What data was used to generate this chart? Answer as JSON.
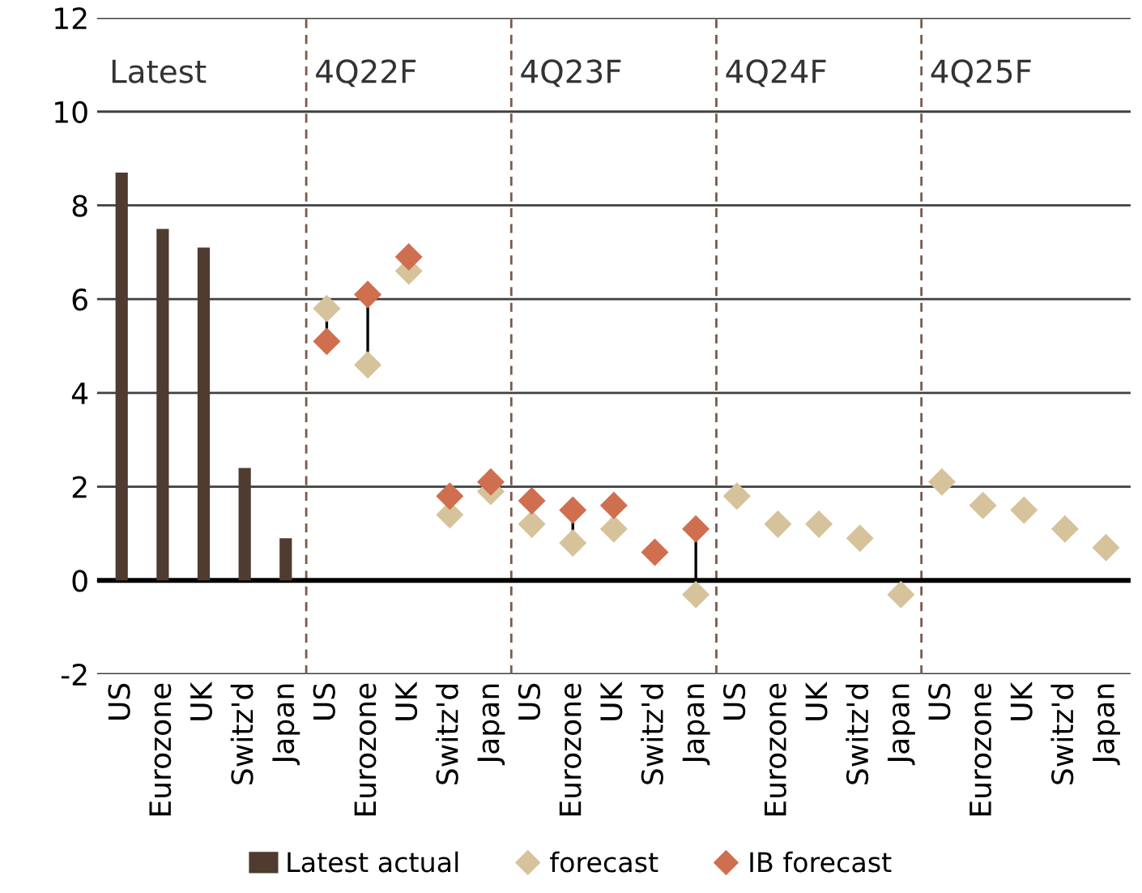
{
  "chart_data": {
    "type": "bar",
    "categories": [
      "US",
      "Eurozone",
      "UK",
      "Switz'd",
      "Japan",
      "US",
      "Eurozone",
      "UK",
      "Switz'd",
      "Japan",
      "US",
      "Eurozone",
      "UK",
      "Switz'd",
      "Japan",
      "US",
      "Eurozone",
      "UK",
      "Switz'd",
      "Japan",
      "US",
      "Eurozone",
      "UK",
      "Switz'd",
      "Japan"
    ],
    "annotations": [
      "Latest",
      "4Q22F",
      "4Q23F",
      "4Q24F",
      "4Q25F"
    ],
    "series": [
      {
        "name": "Latest actual",
        "color": "#4f3b2f",
        "values": [
          8.7,
          7.5,
          7.1,
          2.4,
          0.9,
          null,
          null,
          null,
          null,
          null,
          null,
          null,
          null,
          null,
          null,
          null,
          null,
          null,
          null,
          null,
          null,
          null,
          null,
          null,
          null
        ]
      },
      {
        "name": "forecast",
        "type": "scatter",
        "color": "#d6c39c",
        "marker": "diamond",
        "values": [
          null,
          null,
          null,
          null,
          null,
          5.8,
          4.6,
          6.6,
          1.4,
          1.9,
          1.2,
          0.8,
          1.1,
          null,
          -0.3,
          1.8,
          1.2,
          1.2,
          0.9,
          -0.3,
          2.1,
          1.6,
          1.5,
          1.1,
          0.7
        ]
      },
      {
        "name": "IB forecast",
        "type": "scatter",
        "color": "#cf6f4f",
        "marker": "diamond",
        "values": [
          null,
          null,
          null,
          null,
          null,
          5.1,
          6.1,
          6.9,
          1.8,
          2.1,
          1.7,
          1.5,
          1.6,
          0.6,
          1.1,
          null,
          null,
          null,
          null,
          null,
          null,
          null,
          null,
          null,
          null
        ]
      }
    ],
    "ylim": [
      -2,
      12
    ],
    "yticks": [
      -2,
      0,
      2,
      4,
      6,
      8,
      10,
      12
    ],
    "ref_lines": [
      {
        "axis": "y",
        "value": 0,
        "color": "#000000"
      }
    ],
    "grid": "y",
    "legend": "bottom"
  }
}
